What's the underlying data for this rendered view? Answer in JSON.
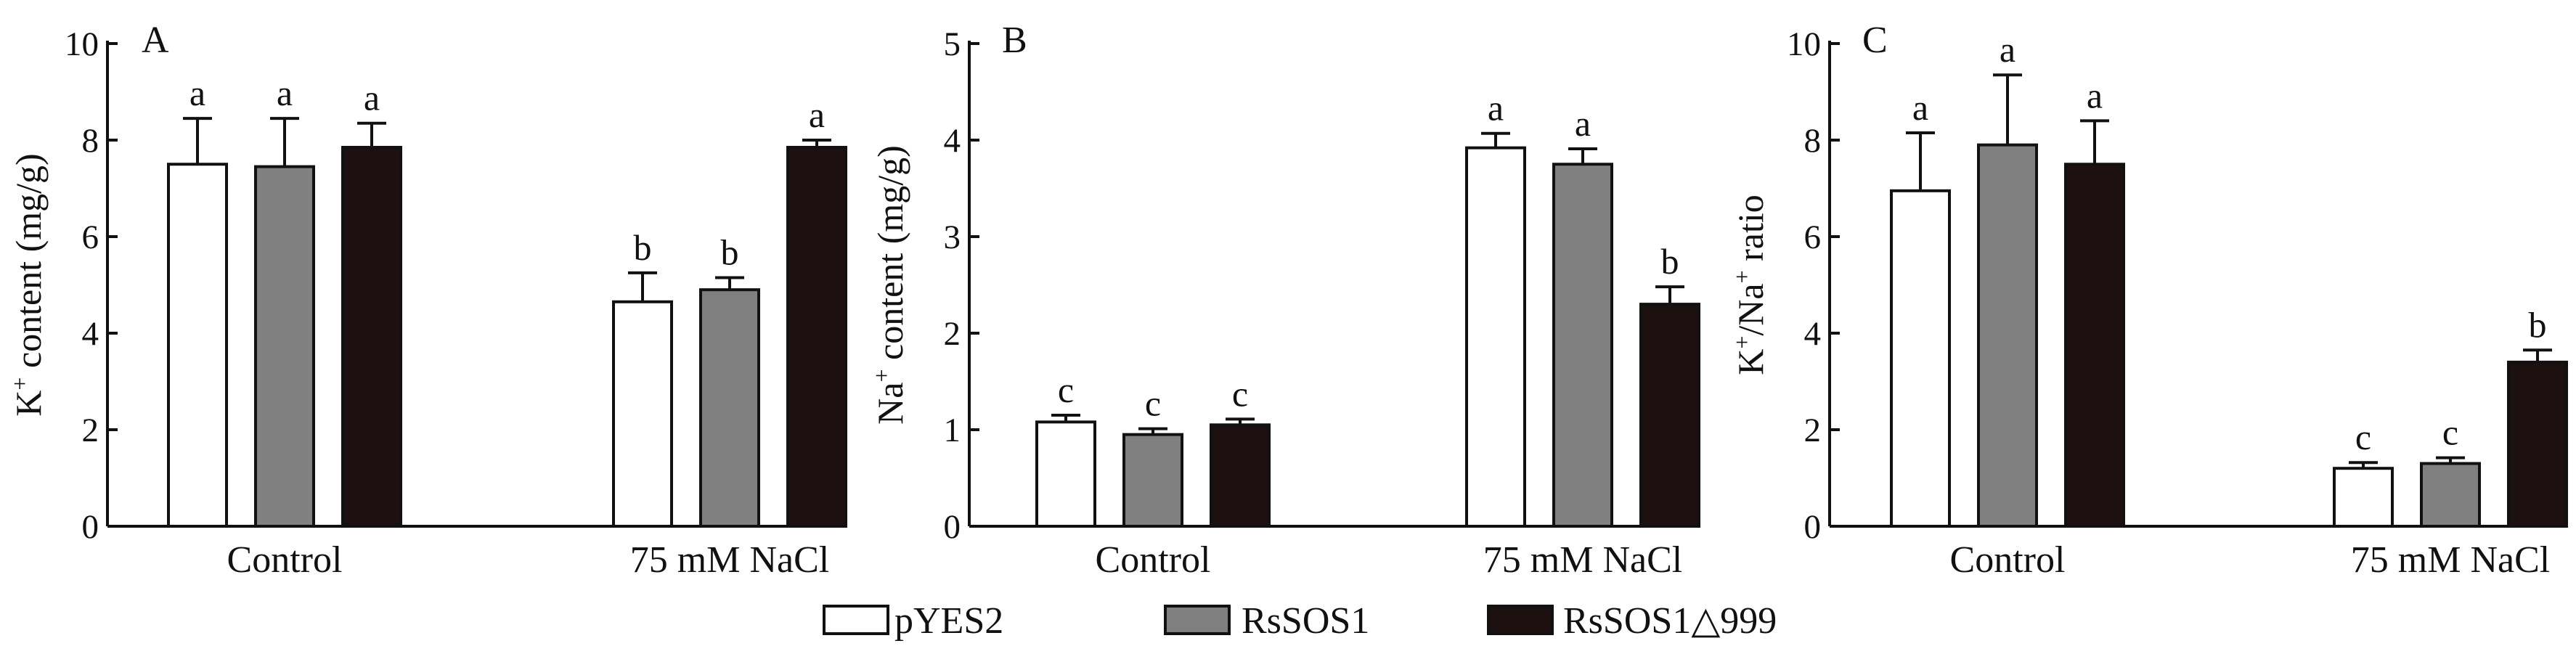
{
  "chart_data": [
    {
      "type": "bar",
      "panel": "A",
      "ylabel_main": "K",
      "ylabel_sup": "+",
      "ylabel_rest": " content (mg/g)",
      "ylim": [
        0,
        10
      ],
      "yticks": [
        "0",
        "2",
        "4",
        "6",
        "8",
        "10"
      ],
      "categories": [
        "Control",
        "75 mM NaCl"
      ],
      "series": [
        {
          "name": "pYES2",
          "values": [
            7.5,
            4.65
          ],
          "errors": [
            0.95,
            0.6
          ],
          "letters": [
            "a",
            "b"
          ]
        },
        {
          "name": "RsSOS1",
          "values": [
            7.45,
            4.9
          ],
          "errors": [
            1.0,
            0.25
          ],
          "letters": [
            "a",
            "b"
          ]
        },
        {
          "name": "RsSOS1△999",
          "values": [
            7.85,
            7.85
          ],
          "errors": [
            0.5,
            0.15
          ],
          "letters": [
            "a",
            "a"
          ]
        }
      ]
    },
    {
      "type": "bar",
      "panel": "B",
      "ylabel_main": "Na",
      "ylabel_sup": "+",
      "ylabel_rest": " content (mg/g)",
      "ylim": [
        0,
        5
      ],
      "yticks": [
        "0",
        "1",
        "2",
        "3",
        "4",
        "5"
      ],
      "categories": [
        "Control",
        "75 mM NaCl"
      ],
      "series": [
        {
          "name": "pYES2",
          "values": [
            1.08,
            3.92
          ],
          "errors": [
            0.07,
            0.15
          ],
          "letters": [
            "c",
            "a"
          ]
        },
        {
          "name": "RsSOS1",
          "values": [
            0.95,
            3.75
          ],
          "errors": [
            0.06,
            0.16
          ],
          "letters": [
            "c",
            "a"
          ]
        },
        {
          "name": "RsSOS1△999",
          "values": [
            1.05,
            2.3
          ],
          "errors": [
            0.06,
            0.18
          ],
          "letters": [
            "c",
            "b"
          ]
        }
      ]
    },
    {
      "type": "bar",
      "panel": "C",
      "ylabel_main": "K",
      "ylabel_sup": "+",
      "ylabel_rest": "/Na",
      "ylabel_sup2": "+",
      "ylabel_rest2": " ratio",
      "ylim": [
        0,
        10
      ],
      "yticks": [
        "0",
        "2",
        "4",
        "6",
        "8",
        "10"
      ],
      "categories": [
        "Control",
        "75 mM NaCl"
      ],
      "series": [
        {
          "name": "pYES2",
          "values": [
            6.95,
            1.2
          ],
          "errors": [
            1.2,
            0.12
          ],
          "letters": [
            "a",
            "c"
          ]
        },
        {
          "name": "RsSOS1",
          "values": [
            7.9,
            1.3
          ],
          "errors": [
            1.45,
            0.12
          ],
          "letters": [
            "a",
            "c"
          ]
        },
        {
          "name": "RsSOS1△999",
          "values": [
            7.5,
            3.4
          ],
          "errors": [
            0.9,
            0.25
          ],
          "letters": [
            "a",
            "b"
          ]
        }
      ]
    }
  ],
  "legend": {
    "items": [
      {
        "label": "pYES2",
        "color": "#ffffff"
      },
      {
        "label": "RsSOS1",
        "color": "#808080"
      },
      {
        "label": "RsSOS1△999",
        "color": "#1c1010"
      }
    ]
  }
}
